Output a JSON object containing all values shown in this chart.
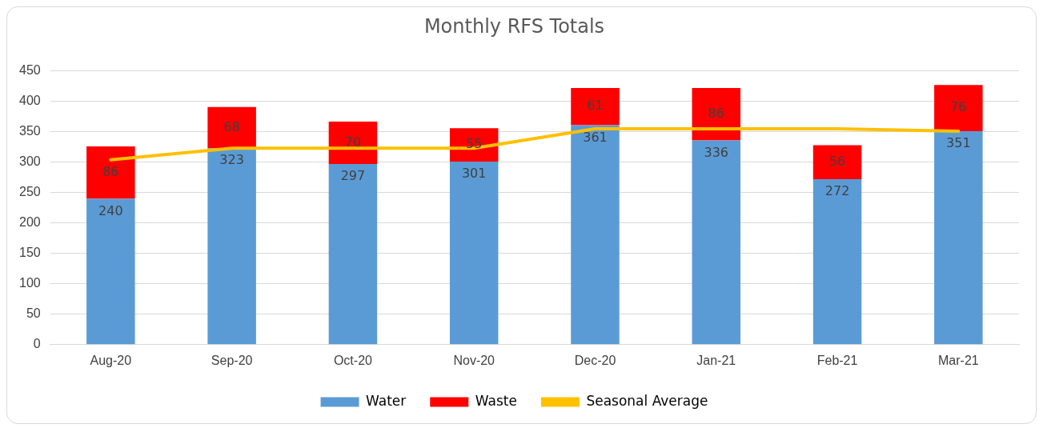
{
  "chart_data": {
    "type": "bar",
    "title": "Monthly RFS Totals",
    "stacked": true,
    "legend": "bottom",
    "grid": "y",
    "categories": [
      "Aug-20",
      "Sep-20",
      "Oct-20",
      "Nov-20",
      "Dec-20",
      "Jan-21",
      "Feb-21",
      "Mar-21"
    ],
    "ylim": [
      0,
      450
    ],
    "yticks": [
      0,
      50,
      100,
      150,
      200,
      250,
      300,
      350,
      400,
      450
    ],
    "series": [
      {
        "name": "Water",
        "color": "#5b9bd5",
        "values": [
          240,
          323,
          297,
          301,
          361,
          336,
          272,
          351
        ],
        "value_labels": [
          "240",
          "323",
          "297",
          "301",
          "361",
          "336",
          "272",
          "351"
        ]
      },
      {
        "name": "Waste",
        "color": "#ff0000",
        "values": [
          86,
          68,
          70,
          55,
          61,
          86,
          56,
          76
        ],
        "value_labels": [
          "86",
          "68",
          "70",
          "55",
          "61",
          "86",
          "56",
          "76"
        ]
      },
      {
        "name": "Seasonal Average",
        "type": "line",
        "color": "#ffc000",
        "values": [
          304,
          323,
          323,
          323,
          355,
          355,
          355,
          351
        ]
      }
    ]
  }
}
